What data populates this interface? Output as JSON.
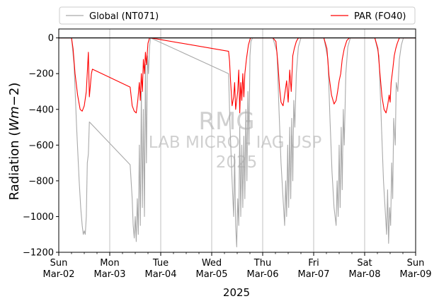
{
  "chart_data": {
    "type": "line",
    "xlabel": "2025",
    "ylabel_main": "Radiation (",
    "ylabel_unit_italic": "Wm",
    "ylabel_minus": "−2",
    "ylabel_close": ")",
    "ylim": [
      -1200,
      50
    ],
    "yticks": [
      0,
      -200,
      -400,
      -600,
      -800,
      -1000,
      -1200
    ],
    "ytick_labels": [
      "0",
      "−200",
      "−400",
      "−600",
      "−800",
      "−1000",
      "−1200"
    ],
    "xlim_days": [
      0,
      7
    ],
    "xticks": [
      {
        "day": "Sun",
        "date": "Mar-02"
      },
      {
        "day": "Mon",
        "date": "Mar-03"
      },
      {
        "day": "Tue",
        "date": "Mar-04"
      },
      {
        "day": "Wed",
        "date": "Mar-05"
      },
      {
        "day": "Thu",
        "date": "Mar-06"
      },
      {
        "day": "Fri",
        "date": "Mar-07"
      },
      {
        "day": "Sat",
        "date": "Mar-08"
      },
      {
        "day": "Sun",
        "date": "Mar-09"
      }
    ],
    "grid": "vertical",
    "legend_position": "top, above plot",
    "watermark": [
      "RMG",
      "LAB MICRO - IAG USP",
      "2025"
    ],
    "series": [
      {
        "name": "Global (NT071)",
        "color": "#a9a9a9",
        "points": [
          [
            0.0,
            0
          ],
          [
            0.25,
            0
          ],
          [
            0.3,
            -150
          ],
          [
            0.35,
            -500
          ],
          [
            0.4,
            -800
          ],
          [
            0.43,
            -950
          ],
          [
            0.46,
            -1050
          ],
          [
            0.48,
            -1100
          ],
          [
            0.5,
            -1080
          ],
          [
            0.52,
            -1100
          ],
          [
            0.54,
            -1000
          ],
          [
            0.56,
            -700
          ],
          [
            0.58,
            -650
          ],
          [
            0.6,
            -470
          ],
          [
            1.4,
            -710
          ],
          [
            1.44,
            -900
          ],
          [
            1.46,
            -1050
          ],
          [
            1.48,
            -1120
          ],
          [
            1.5,
            -1000
          ],
          [
            1.52,
            -1140
          ],
          [
            1.54,
            -900
          ],
          [
            1.56,
            -1100
          ],
          [
            1.58,
            -600
          ],
          [
            1.6,
            -1050
          ],
          [
            1.62,
            -300
          ],
          [
            1.64,
            -950
          ],
          [
            1.66,
            -400
          ],
          [
            1.68,
            -1000
          ],
          [
            1.7,
            -150
          ],
          [
            1.72,
            -700
          ],
          [
            1.74,
            -100
          ],
          [
            1.76,
            -200
          ],
          [
            1.78,
            -50
          ],
          [
            1.8,
            0
          ],
          [
            3.33,
            -200
          ],
          [
            3.36,
            -500
          ],
          [
            3.4,
            -800
          ],
          [
            3.43,
            -1000
          ],
          [
            3.45,
            -650
          ],
          [
            3.47,
            -1050
          ],
          [
            3.49,
            -1170
          ],
          [
            3.51,
            -900
          ],
          [
            3.53,
            -1050
          ],
          [
            3.55,
            -500
          ],
          [
            3.57,
            -1000
          ],
          [
            3.59,
            -600
          ],
          [
            3.61,
            -950
          ],
          [
            3.63,
            -550
          ],
          [
            3.65,
            -900
          ],
          [
            3.67,
            -400
          ],
          [
            3.69,
            -800
          ],
          [
            3.71,
            -300
          ],
          [
            3.73,
            -600
          ],
          [
            3.75,
            -100
          ],
          [
            3.77,
            -20
          ],
          [
            3.8,
            0
          ],
          [
            4.2,
            0
          ],
          [
            4.28,
            -80
          ],
          [
            4.32,
            -400
          ],
          [
            4.36,
            -700
          ],
          [
            4.4,
            -900
          ],
          [
            4.43,
            -1050
          ],
          [
            4.45,
            -800
          ],
          [
            4.47,
            -1000
          ],
          [
            4.49,
            -600
          ],
          [
            4.51,
            -950
          ],
          [
            4.53,
            -500
          ],
          [
            4.55,
            -900
          ],
          [
            4.57,
            -450
          ],
          [
            4.59,
            -800
          ],
          [
            4.61,
            -350
          ],
          [
            4.63,
            -500
          ],
          [
            4.66,
            -200
          ],
          [
            4.7,
            -50
          ],
          [
            4.75,
            0
          ],
          [
            5.2,
            0
          ],
          [
            5.28,
            -120
          ],
          [
            5.32,
            -450
          ],
          [
            5.36,
            -750
          ],
          [
            5.4,
            -950
          ],
          [
            5.44,
            -1050
          ],
          [
            5.46,
            -800
          ],
          [
            5.48,
            -1000
          ],
          [
            5.5,
            -600
          ],
          [
            5.52,
            -950
          ],
          [
            5.54,
            -500
          ],
          [
            5.56,
            -850
          ],
          [
            5.58,
            -400
          ],
          [
            5.6,
            -600
          ],
          [
            5.63,
            -200
          ],
          [
            5.67,
            -50
          ],
          [
            5.72,
            0
          ],
          [
            6.2,
            0
          ],
          [
            6.28,
            -100
          ],
          [
            6.33,
            -500
          ],
          [
            6.37,
            -800
          ],
          [
            6.4,
            -950
          ],
          [
            6.43,
            -1100
          ],
          [
            6.45,
            -850
          ],
          [
            6.47,
            -1150
          ],
          [
            6.49,
            -950
          ],
          [
            6.51,
            -1050
          ],
          [
            6.53,
            -700
          ],
          [
            6.55,
            -900
          ],
          [
            6.57,
            -450
          ],
          [
            6.6,
            -600
          ],
          [
            6.62,
            -250
          ],
          [
            6.65,
            -300
          ],
          [
            6.68,
            -120
          ],
          [
            6.72,
            -40
          ],
          [
            6.76,
            0
          ],
          [
            7.0,
            0
          ]
        ]
      },
      {
        "name": "PAR (FO40)",
        "color": "#ff0000",
        "points": [
          [
            0.0,
            0
          ],
          [
            0.25,
            0
          ],
          [
            0.28,
            -60
          ],
          [
            0.32,
            -200
          ],
          [
            0.37,
            -320
          ],
          [
            0.42,
            -400
          ],
          [
            0.46,
            -410
          ],
          [
            0.5,
            -380
          ],
          [
            0.54,
            -300
          ],
          [
            0.58,
            -80
          ],
          [
            0.6,
            -330
          ],
          [
            0.64,
            -200
          ],
          [
            0.66,
            -175
          ],
          [
            1.4,
            -275
          ],
          [
            1.44,
            -380
          ],
          [
            1.48,
            -410
          ],
          [
            1.52,
            -420
          ],
          [
            1.55,
            -350
          ],
          [
            1.58,
            -250
          ],
          [
            1.6,
            -350
          ],
          [
            1.62,
            -200
          ],
          [
            1.64,
            -300
          ],
          [
            1.66,
            -120
          ],
          [
            1.68,
            -200
          ],
          [
            1.7,
            -80
          ],
          [
            1.72,
            -150
          ],
          [
            1.75,
            -30
          ],
          [
            1.78,
            0
          ],
          [
            1.8,
            0
          ],
          [
            3.33,
            -75
          ],
          [
            3.35,
            -130
          ],
          [
            3.37,
            -240
          ],
          [
            3.4,
            -380
          ],
          [
            3.43,
            -330
          ],
          [
            3.45,
            -250
          ],
          [
            3.47,
            -400
          ],
          [
            3.49,
            -350
          ],
          [
            3.51,
            -300
          ],
          [
            3.53,
            -180
          ],
          [
            3.55,
            -420
          ],
          [
            3.57,
            -250
          ],
          [
            3.59,
            -350
          ],
          [
            3.61,
            -200
          ],
          [
            3.63,
            -330
          ],
          [
            3.65,
            -200
          ],
          [
            3.68,
            -120
          ],
          [
            3.72,
            -40
          ],
          [
            3.76,
            0
          ],
          [
            4.2,
            0
          ],
          [
            4.26,
            -20
          ],
          [
            4.3,
            -150
          ],
          [
            4.33,
            -280
          ],
          [
            4.36,
            -360
          ],
          [
            4.4,
            -380
          ],
          [
            4.44,
            -300
          ],
          [
            4.47,
            -240
          ],
          [
            4.5,
            -360
          ],
          [
            4.53,
            -180
          ],
          [
            4.56,
            -300
          ],
          [
            4.59,
            -100
          ],
          [
            4.62,
            -60
          ],
          [
            4.66,
            -20
          ],
          [
            4.7,
            0
          ],
          [
            5.2,
            0
          ],
          [
            5.26,
            -60
          ],
          [
            5.3,
            -210
          ],
          [
            5.35,
            -320
          ],
          [
            5.4,
            -370
          ],
          [
            5.44,
            -350
          ],
          [
            5.47,
            -300
          ],
          [
            5.5,
            -240
          ],
          [
            5.53,
            -200
          ],
          [
            5.56,
            -120
          ],
          [
            5.6,
            -60
          ],
          [
            5.65,
            -15
          ],
          [
            5.7,
            0
          ],
          [
            6.2,
            0
          ],
          [
            6.26,
            -60
          ],
          [
            6.3,
            -200
          ],
          [
            6.34,
            -330
          ],
          [
            6.38,
            -400
          ],
          [
            6.42,
            -420
          ],
          [
            6.45,
            -380
          ],
          [
            6.48,
            -320
          ],
          [
            6.5,
            -360
          ],
          [
            6.52,
            -250
          ],
          [
            6.55,
            -180
          ],
          [
            6.58,
            -100
          ],
          [
            6.61,
            -60
          ],
          [
            6.64,
            -30
          ],
          [
            6.68,
            0
          ],
          [
            7.0,
            0
          ]
        ]
      }
    ]
  }
}
